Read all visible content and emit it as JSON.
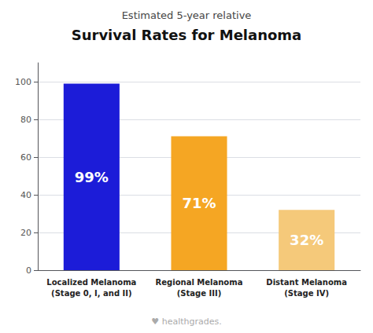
{
  "chart_data": {
    "type": "bar",
    "subtitle": "Estimated 5-year relative",
    "title": "Survival Rates for Melanoma",
    "categories": [
      "Localized Melanoma\n(Stage 0, I, and II)",
      "Regional Melanoma\n(Stage III)",
      "Distant Melanoma\n(Stage IV)"
    ],
    "values": [
      99,
      71,
      32
    ],
    "value_labels": [
      "99%",
      "71%",
      "32%"
    ],
    "data_labels": true,
    "colors": [
      "#1c1cd8",
      "#f5a623",
      "#f5c97a"
    ],
    "ylim": [
      0,
      110
    ],
    "yticks": [
      0,
      20,
      40,
      60,
      80,
      100
    ],
    "grid": true,
    "annotations": [
      "♥ healthgrades."
    ]
  }
}
